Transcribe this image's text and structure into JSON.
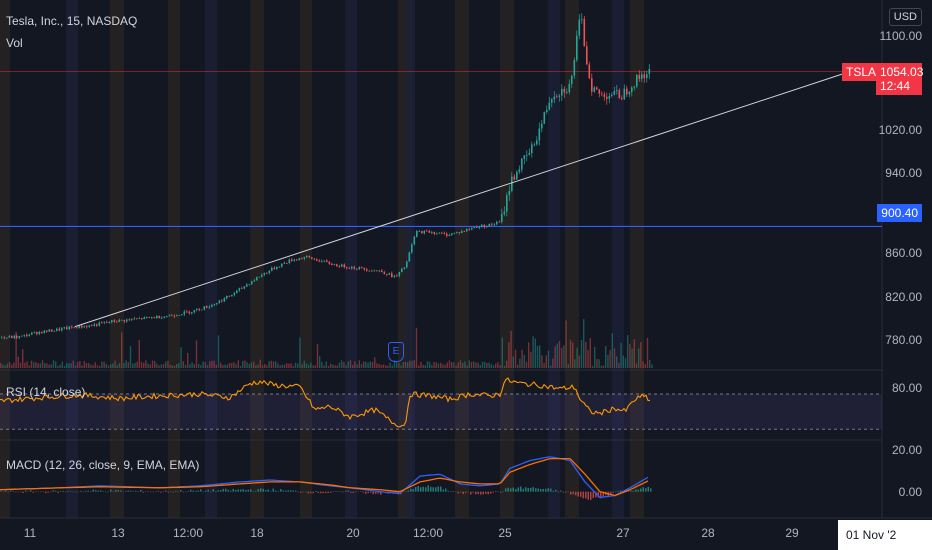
{
  "header": {
    "symbol_title": "Tesla, Inc., 15, NASDAQ",
    "volume_label": "Vol",
    "currency": "USD"
  },
  "price_axis": {
    "ticks": [
      "1100.00",
      "1020.00",
      "940.00",
      "860.00",
      "820.00",
      "780.00"
    ]
  },
  "badges": {
    "ticker": "TSLA",
    "last_price": "1054.03",
    "countdown": "12:44",
    "level_price": "900.40",
    "ticker_color": "#f23645",
    "level_color": "#2962ff"
  },
  "rsi": {
    "label": "RSI (14, close)",
    "axis_tick": "80.00"
  },
  "macd": {
    "label": "MACD (12, 26, close, 9, EMA, EMA)",
    "axis_ticks": [
      "20.00",
      "0.00"
    ]
  },
  "time_axis": {
    "labels": [
      "11",
      "13",
      "12:00",
      "18",
      "20",
      "12:00",
      "25",
      "27",
      "28",
      "29"
    ],
    "cursor_date": "01 Nov '2"
  },
  "chart_data": {
    "type": "line",
    "title": "Tesla, Inc., 15, NASDAQ",
    "ylim": [
      760,
      1115
    ],
    "price_path": [
      [
        0,
        790
      ],
      [
        20,
        791
      ],
      [
        35,
        795
      ],
      [
        50,
        797
      ],
      [
        70,
        800
      ],
      [
        90,
        802
      ],
      [
        110,
        806
      ],
      [
        130,
        808
      ],
      [
        150,
        810
      ],
      [
        170,
        812
      ],
      [
        190,
        816
      ],
      [
        210,
        822
      ],
      [
        230,
        832
      ],
      [
        245,
        842
      ],
      [
        260,
        852
      ],
      [
        275,
        860
      ],
      [
        290,
        867
      ],
      [
        305,
        870
      ],
      [
        320,
        866
      ],
      [
        335,
        862
      ],
      [
        350,
        860
      ],
      [
        365,
        858
      ],
      [
        380,
        856
      ],
      [
        395,
        850
      ],
      [
        405,
        862
      ],
      [
        415,
        895
      ],
      [
        430,
        895
      ],
      [
        445,
        892
      ],
      [
        460,
        895
      ],
      [
        475,
        900
      ],
      [
        490,
        902
      ],
      [
        500,
        905
      ],
      [
        510,
        945
      ],
      [
        520,
        962
      ],
      [
        530,
        975
      ],
      [
        540,
        1000
      ],
      [
        550,
        1030
      ],
      [
        560,
        1035
      ],
      [
        570,
        1040
      ],
      [
        575,
        1080
      ],
      [
        580,
        1110
      ],
      [
        585,
        1070
      ],
      [
        590,
        1040
      ],
      [
        600,
        1030
      ],
      [
        610,
        1032
      ],
      [
        620,
        1030
      ],
      [
        630,
        1040
      ],
      [
        640,
        1050
      ],
      [
        650,
        1054
      ]
    ],
    "trendline": {
      "start": [
        75,
        801
      ],
      "end": [
        850,
        1054
      ]
    },
    "horizontal_levels": [
      900.4,
      1054.03
    ],
    "rsi_range": [
      20,
      95
    ],
    "rsi_band": [
      30,
      70
    ],
    "rsi_path": [
      [
        0,
        62
      ],
      [
        40,
        66
      ],
      [
        80,
        69
      ],
      [
        120,
        65
      ],
      [
        160,
        68
      ],
      [
        200,
        70
      ],
      [
        230,
        66
      ],
      [
        250,
        82
      ],
      [
        260,
        84
      ],
      [
        275,
        80
      ],
      [
        300,
        78
      ],
      [
        315,
        52
      ],
      [
        330,
        56
      ],
      [
        350,
        44
      ],
      [
        375,
        52
      ],
      [
        395,
        36
      ],
      [
        405,
        34
      ],
      [
        410,
        70
      ],
      [
        430,
        68
      ],
      [
        450,
        64
      ],
      [
        470,
        70
      ],
      [
        490,
        68
      ],
      [
        500,
        70
      ],
      [
        505,
        86
      ],
      [
        520,
        82
      ],
      [
        540,
        80
      ],
      [
        560,
        76
      ],
      [
        575,
        78
      ],
      [
        580,
        64
      ],
      [
        590,
        50
      ],
      [
        600,
        48
      ],
      [
        615,
        54
      ],
      [
        625,
        50
      ],
      [
        635,
        64
      ],
      [
        645,
        68
      ],
      [
        650,
        62
      ]
    ],
    "macd_range": [
      -12,
      24
    ],
    "macd_line": [
      [
        0,
        1
      ],
      [
        60,
        2
      ],
      [
        100,
        3
      ],
      [
        160,
        2
      ],
      [
        200,
        3
      ],
      [
        240,
        5
      ],
      [
        270,
        6
      ],
      [
        300,
        5
      ],
      [
        330,
        3
      ],
      [
        350,
        2
      ],
      [
        380,
        0
      ],
      [
        400,
        -1
      ],
      [
        420,
        8
      ],
      [
        440,
        9
      ],
      [
        460,
        4
      ],
      [
        480,
        3
      ],
      [
        500,
        4
      ],
      [
        510,
        12
      ],
      [
        530,
        16
      ],
      [
        550,
        18
      ],
      [
        570,
        16
      ],
      [
        585,
        5
      ],
      [
        600,
        -3
      ],
      [
        615,
        -2
      ],
      [
        630,
        2
      ],
      [
        650,
        8
      ]
    ],
    "signal_line": [
      [
        0,
        1
      ],
      [
        60,
        2
      ],
      [
        100,
        2.5
      ],
      [
        160,
        2
      ],
      [
        200,
        2.5
      ],
      [
        240,
        4
      ],
      [
        270,
        5
      ],
      [
        300,
        5
      ],
      [
        330,
        3.5
      ],
      [
        350,
        2
      ],
      [
        380,
        1
      ],
      [
        400,
        0
      ],
      [
        420,
        5
      ],
      [
        440,
        7
      ],
      [
        460,
        5
      ],
      [
        480,
        4
      ],
      [
        500,
        4
      ],
      [
        510,
        10
      ],
      [
        530,
        14
      ],
      [
        550,
        17
      ],
      [
        570,
        17
      ],
      [
        585,
        9
      ],
      [
        600,
        0
      ],
      [
        615,
        -2
      ],
      [
        630,
        1
      ],
      [
        650,
        6
      ]
    ]
  },
  "colors": {
    "background": "#131722",
    "candle_up": "#26a69a",
    "candle_down": "#ef5350",
    "rsi_line": "#ff9800",
    "macd_line": "#2962ff",
    "signal_line": "#ff6d00"
  }
}
